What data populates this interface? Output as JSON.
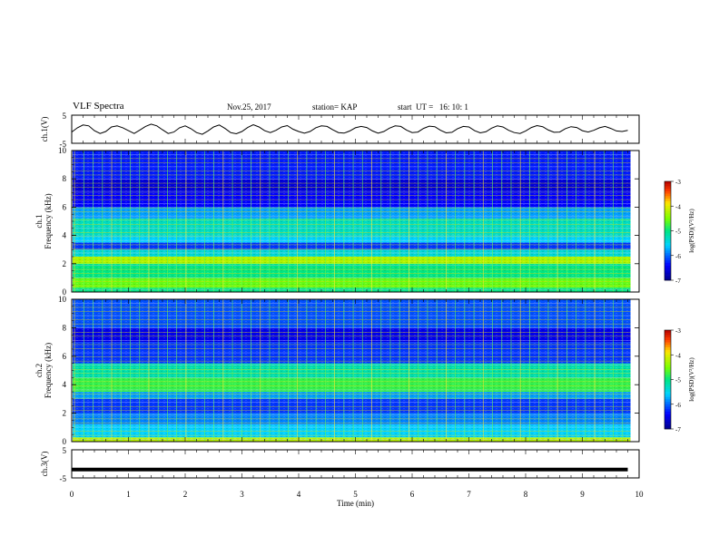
{
  "header": {
    "title": "VLF Spectra",
    "date": "Nov.25, 2017",
    "station": "station= KAP",
    "start": "start  UT =   16: 10: 1"
  },
  "chart_data": [
    {
      "type": "line",
      "ylabel": "ch.1(V)",
      "ylim": [
        -5,
        5
      ],
      "yticks": [
        "5",
        "-5"
      ],
      "x": [
        0.0,
        0.1,
        0.2,
        0.3,
        0.4,
        0.5,
        0.6,
        0.7,
        0.8,
        0.9,
        1.0,
        1.1,
        1.2,
        1.3,
        1.4,
        1.5,
        1.6,
        1.7,
        1.8,
        1.9,
        2.0,
        2.1,
        2.2,
        2.3,
        2.4,
        2.5,
        2.6,
        2.7,
        2.8,
        2.9,
        3.0,
        3.1,
        3.2,
        3.3,
        3.4,
        3.5,
        3.6,
        3.7,
        3.8,
        3.9,
        4.0,
        4.1,
        4.2,
        4.3,
        4.4,
        4.5,
        4.6,
        4.7,
        4.8,
        4.9,
        5.0,
        5.1,
        5.2,
        5.3,
        5.4,
        5.5,
        5.6,
        5.7,
        5.8,
        5.9,
        6.0,
        6.1,
        6.2,
        6.3,
        6.4,
        6.5,
        6.6,
        6.7,
        6.8,
        6.9,
        7.0,
        7.1,
        7.2,
        7.3,
        7.4,
        7.5,
        7.6,
        7.7,
        7.8,
        7.9,
        8.0,
        8.1,
        8.2,
        8.3,
        8.4,
        8.5,
        8.6,
        8.7,
        8.8,
        8.9,
        9.0,
        9.1,
        9.2,
        9.3,
        9.4,
        9.5,
        9.6,
        9.7,
        9.8
      ],
      "values": [
        -1.0,
        0.5,
        1.5,
        1.2,
        -0.5,
        -1.5,
        -0.8,
        0.8,
        1.2,
        0.5,
        -0.5,
        -1.5,
        -0.3,
        1.0,
        1.8,
        1.2,
        -0.2,
        -1.5,
        -1.0,
        0.5,
        1.2,
        0.2,
        -1.2,
        -1.8,
        -0.6,
        0.8,
        1.5,
        0.3,
        -1.2,
        -1.6,
        -0.8,
        0.6,
        1.6,
        0.8,
        -0.5,
        -1.2,
        -0.4,
        0.8,
        1.3,
        0.0,
        -0.8,
        -1.4,
        -0.8,
        0.5,
        1.2,
        1.0,
        -0.2,
        -1.2,
        -1.4,
        -0.6,
        0.5,
        1.0,
        0.6,
        -0.6,
        -1.4,
        -0.8,
        0.4,
        1.2,
        1.0,
        -0.3,
        -1.2,
        -1.0,
        0.3,
        1.1,
        0.9,
        -0.4,
        -1.3,
        -1.1,
        0.2,
        1.0,
        0.8,
        -0.5,
        -1.3,
        -0.9,
        0.4,
        1.2,
        0.8,
        -0.4,
        -1.2,
        -1.5,
        -0.6,
        0.6,
        1.3,
        0.9,
        -0.3,
        -1.1,
        -1.0,
        0.2,
        0.9,
        0.6,
        -0.5,
        -1.0,
        -0.4,
        0.5,
        1.0,
        0.3,
        -0.6,
        -0.8,
        -0.4
      ]
    },
    {
      "type": "heatmap",
      "ylabel": "ch.1 Frequency (kHz)",
      "ylim": [
        0,
        10
      ],
      "yticks": [
        "0",
        "2",
        "4",
        "6",
        "8",
        "10"
      ],
      "colorbar": {
        "label": "log(PSD)(V²/Hz)",
        "range": [
          -7,
          -3
        ],
        "ticks": [
          "-3",
          "-4",
          "-5",
          "-6",
          "-7"
        ]
      },
      "bands": [
        {
          "kHz": [
            0.0,
            0.3
          ],
          "level": -5.0
        },
        {
          "kHz": [
            0.3,
            1.0
          ],
          "level": -4.6
        },
        {
          "kHz": [
            1.0,
            2.0
          ],
          "level": -5.0
        },
        {
          "kHz": [
            2.0,
            2.5
          ],
          "level": -4.3
        },
        {
          "kHz": [
            2.5,
            3.0
          ],
          "level": -5.4
        },
        {
          "kHz": [
            3.0,
            3.5
          ],
          "level": -6.2
        },
        {
          "kHz": [
            3.5,
            4.0
          ],
          "level": -5.6
        },
        {
          "kHz": [
            4.0,
            5.2
          ],
          "level": -5.3
        },
        {
          "kHz": [
            5.2,
            6.0
          ],
          "level": -5.8
        },
        {
          "kHz": [
            6.0,
            7.0
          ],
          "level": -6.4
        },
        {
          "kHz": [
            7.0,
            8.0
          ],
          "level": -6.6
        },
        {
          "kHz": [
            8.0,
            10.0
          ],
          "level": -6.3
        }
      ]
    },
    {
      "type": "heatmap",
      "ylabel": "ch.2 Frequency (kHz)",
      "ylim": [
        0,
        10
      ],
      "yticks": [
        "0",
        "2",
        "4",
        "6",
        "8",
        "10"
      ],
      "colorbar": {
        "label": "log(PSD)(V²/Hz)",
        "range": [
          -7,
          -3
        ],
        "ticks": [
          "-3",
          "-4",
          "-5",
          "-6",
          "-7"
        ]
      },
      "bands": [
        {
          "kHz": [
            0.0,
            0.3
          ],
          "level": -4.2
        },
        {
          "kHz": [
            0.3,
            1.2
          ],
          "level": -5.6
        },
        {
          "kHz": [
            1.2,
            2.0
          ],
          "level": -5.9
        },
        {
          "kHz": [
            2.0,
            3.0
          ],
          "level": -6.2
        },
        {
          "kHz": [
            3.0,
            3.5
          ],
          "level": -5.8
        },
        {
          "kHz": [
            3.5,
            4.5
          ],
          "level": -4.8
        },
        {
          "kHz": [
            4.5,
            5.5
          ],
          "level": -5.2
        },
        {
          "kHz": [
            5.5,
            7.0
          ],
          "level": -6.2
        },
        {
          "kHz": [
            7.0,
            8.0
          ],
          "level": -6.5
        },
        {
          "kHz": [
            8.0,
            10.0
          ],
          "level": -6.1
        }
      ]
    },
    {
      "type": "line",
      "ylabel": "ch.3(V)",
      "ylim": [
        -5,
        5
      ],
      "yticks": [
        "5",
        "-5"
      ],
      "x": [
        0,
        9.8
      ],
      "values": [
        -2.0,
        -2.0
      ]
    }
  ],
  "xaxis": {
    "label": "Time  (min)",
    "range": [
      0,
      10
    ],
    "ticks": [
      "0",
      "1",
      "2",
      "3",
      "4",
      "5",
      "6",
      "7",
      "8",
      "9",
      "10"
    ]
  }
}
